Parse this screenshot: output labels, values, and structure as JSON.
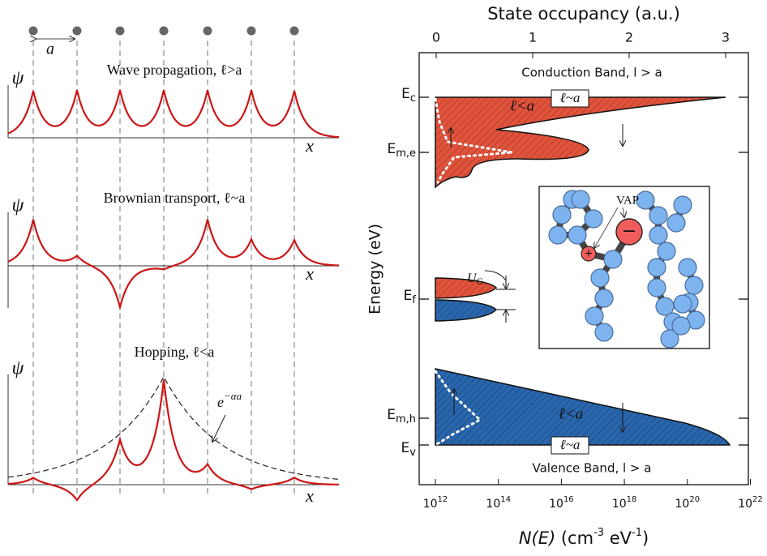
{
  "left": {
    "lattice_label": "a",
    "panels": [
      {
        "title": "Wave propagation, ℓ>a",
        "y_label": "ψ",
        "x_label": "x"
      },
      {
        "title": "Brownian transport, ℓ~a",
        "y_label": "ψ",
        "x_label": "x"
      },
      {
        "title": "Hopping, ℓ<a",
        "y_label": "ψ",
        "x_label": "x",
        "envelope_label": {
          "base": "e",
          "exp": "−αa"
        }
      }
    ]
  },
  "right": {
    "top_axis_title": "State occupancy (a.u.)",
    "top_ticks": [
      0,
      1,
      2,
      3
    ],
    "y_axis_title": "Energy (eV)",
    "bottom_axis_title": {
      "name": "N(E)",
      "unit_a": " (cm",
      "exp_a": "-3",
      "unit_b": " eV",
      "exp_b": "-1",
      "close": ")"
    },
    "bottom_ticks": [
      {
        "base": "10",
        "exp": "12"
      },
      {
        "base": "10",
        "exp": "14"
      },
      {
        "base": "10",
        "exp": "16"
      },
      {
        "base": "10",
        "exp": "18"
      },
      {
        "base": "10",
        "exp": "20"
      },
      {
        "base": "10",
        "exp": "22"
      }
    ],
    "levels": [
      {
        "main": "E",
        "sub": "c"
      },
      {
        "main": "E",
        "sub": "m,e"
      },
      {
        "main": "E",
        "sub": "f"
      },
      {
        "main": "E",
        "sub": "m,h"
      },
      {
        "main": "E",
        "sub": "v"
      }
    ],
    "conduction_band": "Conduction Band, l > a",
    "valence_band": "Valence Band, l > a",
    "box_label_top": "ℓ~a",
    "box_label_bottom": "ℓ~a",
    "cb_inner": "ℓ<a",
    "vb_inner": "ℓ<a",
    "uc": {
      "main": "U",
      "sub": "C"
    },
    "vap": "VAP",
    "minus": "−",
    "plus": "+"
  }
}
